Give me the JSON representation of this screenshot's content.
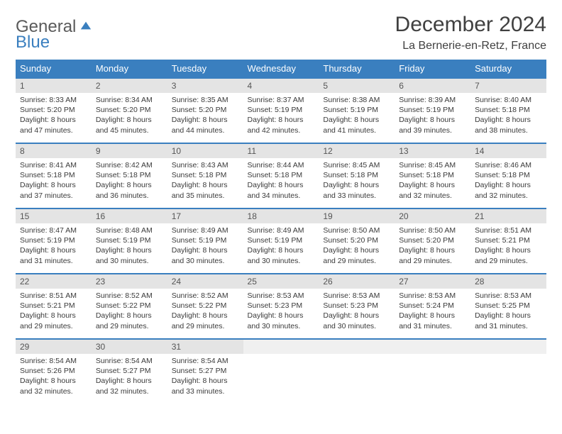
{
  "logo": {
    "general": "General",
    "blue": "Blue"
  },
  "title": "December 2024",
  "location": "La Bernerie-en-Retz, France",
  "colors": {
    "header_bg": "#3a7fbf",
    "header_fg": "#ffffff",
    "daynum_bg": "#e4e4e4",
    "row_border": "#3a7fbf",
    "text": "#3a3a3a"
  },
  "weekdays": [
    "Sunday",
    "Monday",
    "Tuesday",
    "Wednesday",
    "Thursday",
    "Friday",
    "Saturday"
  ],
  "weeks": [
    [
      {
        "n": "1",
        "sr": "8:33 AM",
        "ss": "5:20 PM",
        "dl": "8 hours and 47 minutes."
      },
      {
        "n": "2",
        "sr": "8:34 AM",
        "ss": "5:20 PM",
        "dl": "8 hours and 45 minutes."
      },
      {
        "n": "3",
        "sr": "8:35 AM",
        "ss": "5:20 PM",
        "dl": "8 hours and 44 minutes."
      },
      {
        "n": "4",
        "sr": "8:37 AM",
        "ss": "5:19 PM",
        "dl": "8 hours and 42 minutes."
      },
      {
        "n": "5",
        "sr": "8:38 AM",
        "ss": "5:19 PM",
        "dl": "8 hours and 41 minutes."
      },
      {
        "n": "6",
        "sr": "8:39 AM",
        "ss": "5:19 PM",
        "dl": "8 hours and 39 minutes."
      },
      {
        "n": "7",
        "sr": "8:40 AM",
        "ss": "5:18 PM",
        "dl": "8 hours and 38 minutes."
      }
    ],
    [
      {
        "n": "8",
        "sr": "8:41 AM",
        "ss": "5:18 PM",
        "dl": "8 hours and 37 minutes."
      },
      {
        "n": "9",
        "sr": "8:42 AM",
        "ss": "5:18 PM",
        "dl": "8 hours and 36 minutes."
      },
      {
        "n": "10",
        "sr": "8:43 AM",
        "ss": "5:18 PM",
        "dl": "8 hours and 35 minutes."
      },
      {
        "n": "11",
        "sr": "8:44 AM",
        "ss": "5:18 PM",
        "dl": "8 hours and 34 minutes."
      },
      {
        "n": "12",
        "sr": "8:45 AM",
        "ss": "5:18 PM",
        "dl": "8 hours and 33 minutes."
      },
      {
        "n": "13",
        "sr": "8:45 AM",
        "ss": "5:18 PM",
        "dl": "8 hours and 32 minutes."
      },
      {
        "n": "14",
        "sr": "8:46 AM",
        "ss": "5:18 PM",
        "dl": "8 hours and 32 minutes."
      }
    ],
    [
      {
        "n": "15",
        "sr": "8:47 AM",
        "ss": "5:19 PM",
        "dl": "8 hours and 31 minutes."
      },
      {
        "n": "16",
        "sr": "8:48 AM",
        "ss": "5:19 PM",
        "dl": "8 hours and 30 minutes."
      },
      {
        "n": "17",
        "sr": "8:49 AM",
        "ss": "5:19 PM",
        "dl": "8 hours and 30 minutes."
      },
      {
        "n": "18",
        "sr": "8:49 AM",
        "ss": "5:19 PM",
        "dl": "8 hours and 30 minutes."
      },
      {
        "n": "19",
        "sr": "8:50 AM",
        "ss": "5:20 PM",
        "dl": "8 hours and 29 minutes."
      },
      {
        "n": "20",
        "sr": "8:50 AM",
        "ss": "5:20 PM",
        "dl": "8 hours and 29 minutes."
      },
      {
        "n": "21",
        "sr": "8:51 AM",
        "ss": "5:21 PM",
        "dl": "8 hours and 29 minutes."
      }
    ],
    [
      {
        "n": "22",
        "sr": "8:51 AM",
        "ss": "5:21 PM",
        "dl": "8 hours and 29 minutes."
      },
      {
        "n": "23",
        "sr": "8:52 AM",
        "ss": "5:22 PM",
        "dl": "8 hours and 29 minutes."
      },
      {
        "n": "24",
        "sr": "8:52 AM",
        "ss": "5:22 PM",
        "dl": "8 hours and 29 minutes."
      },
      {
        "n": "25",
        "sr": "8:53 AM",
        "ss": "5:23 PM",
        "dl": "8 hours and 30 minutes."
      },
      {
        "n": "26",
        "sr": "8:53 AM",
        "ss": "5:23 PM",
        "dl": "8 hours and 30 minutes."
      },
      {
        "n": "27",
        "sr": "8:53 AM",
        "ss": "5:24 PM",
        "dl": "8 hours and 31 minutes."
      },
      {
        "n": "28",
        "sr": "8:53 AM",
        "ss": "5:25 PM",
        "dl": "8 hours and 31 minutes."
      }
    ],
    [
      {
        "n": "29",
        "sr": "8:54 AM",
        "ss": "5:26 PM",
        "dl": "8 hours and 32 minutes."
      },
      {
        "n": "30",
        "sr": "8:54 AM",
        "ss": "5:27 PM",
        "dl": "8 hours and 32 minutes."
      },
      {
        "n": "31",
        "sr": "8:54 AM",
        "ss": "5:27 PM",
        "dl": "8 hours and 33 minutes."
      },
      {
        "empty": true
      },
      {
        "empty": true
      },
      {
        "empty": true
      },
      {
        "empty": true
      }
    ]
  ],
  "labels": {
    "sunrise": "Sunrise:",
    "sunset": "Sunset:",
    "daylight": "Daylight:"
  }
}
